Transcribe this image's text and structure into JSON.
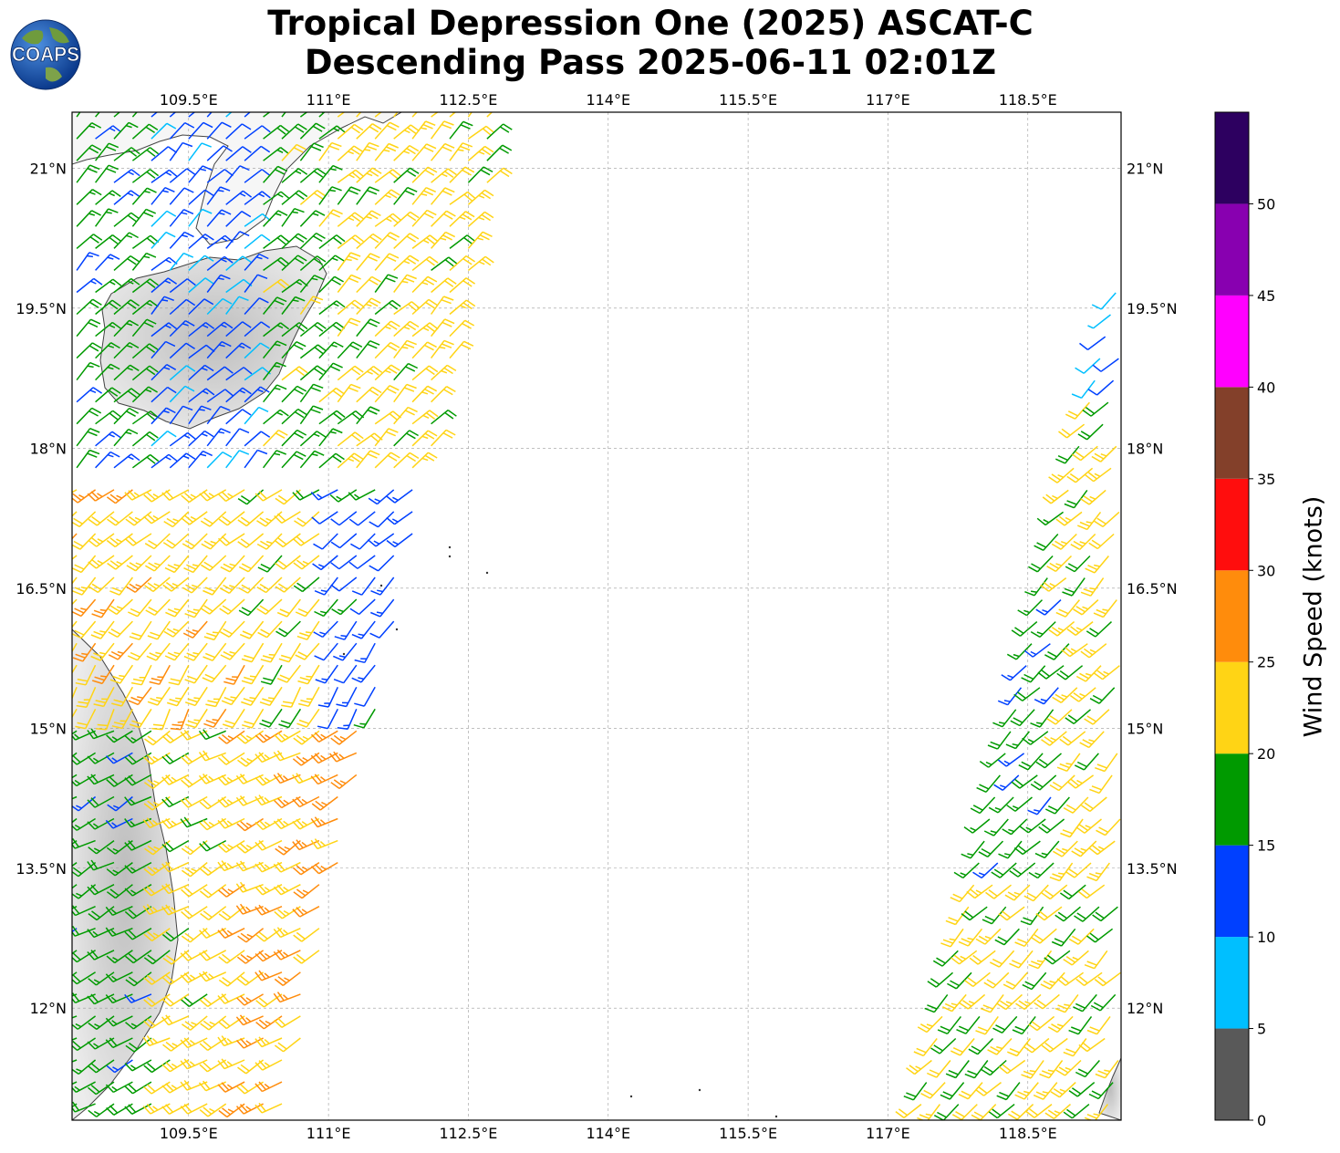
{
  "title": {
    "line1": "Tropical Depression One (2025) ASCAT-C",
    "line2": "Descending Pass 2025-06-11 02:01Z"
  },
  "logo": {
    "text": "COAPS",
    "icon": "globe-icon"
  },
  "map": {
    "lon_range": [
      108.25,
      119.5
    ],
    "lat_range": [
      10.8,
      21.6
    ],
    "lon_ticks": [
      "109.5°E",
      "111°E",
      "112.5°E",
      "114°E",
      "115.5°E",
      "117°E",
      "118.5°E"
    ],
    "lon_tick_values": [
      109.5,
      111,
      112.5,
      114,
      115.5,
      117,
      118.5
    ],
    "lat_ticks": [
      "21°N",
      "19.5°N",
      "18°N",
      "16.5°N",
      "15°N",
      "13.5°N",
      "12°N"
    ],
    "lat_tick_values": [
      21,
      19.5,
      18,
      16.5,
      15,
      13.5,
      12
    ],
    "grid": true
  },
  "colorbar": {
    "label": "Wind Speed (knots)",
    "ticks": [
      "0",
      "5",
      "10",
      "15",
      "20",
      "25",
      "30",
      "35",
      "40",
      "45",
      "50"
    ],
    "range": [
      0,
      55
    ],
    "bins": [
      {
        "from": 0,
        "to": 5,
        "color": "#595959"
      },
      {
        "from": 5,
        "to": 10,
        "color": "#00bfff"
      },
      {
        "from": 10,
        "to": 15,
        "color": "#0040ff"
      },
      {
        "from": 15,
        "to": 20,
        "color": "#009a00"
      },
      {
        "from": 20,
        "to": 25,
        "color": "#ffd415"
      },
      {
        "from": 25,
        "to": 30,
        "color": "#ff8c0c"
      },
      {
        "from": 30,
        "to": 35,
        "color": "#ff0d0d"
      },
      {
        "from": 35,
        "to": 40,
        "color": "#83402a"
      },
      {
        "from": 40,
        "to": 45,
        "color": "#ff00ff"
      },
      {
        "from": 45,
        "to": 50,
        "color": "#8800b0"
      },
      {
        "from": 50,
        "to": 55,
        "color": "#2d0060"
      }
    ]
  }
}
